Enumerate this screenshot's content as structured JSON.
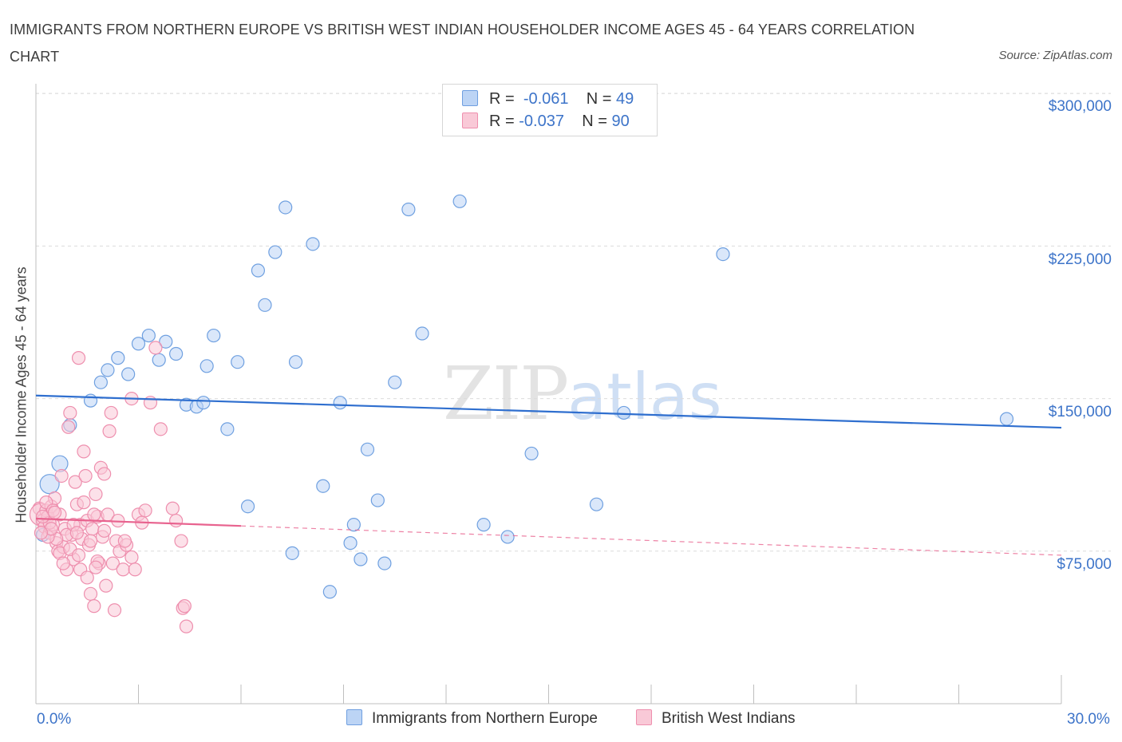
{
  "header": {
    "title": "IMMIGRANTS FROM NORTHERN EUROPE VS BRITISH WEST INDIAN HOUSEHOLDER INCOME AGES 45 - 64 YEARS CORRELATION CHART",
    "source": "Source: ZipAtlas.com"
  },
  "watermark": {
    "zip": "ZIP",
    "atlas": "atlas"
  },
  "legend": {
    "series1": {
      "r_label": "R =",
      "r_value": "-0.061",
      "n_label": "N =",
      "n_value": "49"
    },
    "series2": {
      "r_label": "R =",
      "r_value": "-0.037",
      "n_label": "N =",
      "n_value": "90"
    }
  },
  "colors": {
    "blue": "#6fa0e0",
    "blue_fill": "#bcd4f5",
    "blue_line": "#2f6fcf",
    "pink": "#ee8fae",
    "pink_fill": "#f9c9d7",
    "pink_line": "#e8638f",
    "accent_text": "#3d74c9",
    "grid": "#dcdcdc"
  },
  "chart_data": {
    "type": "scatter",
    "title": "IMMIGRANTS FROM NORTHERN EUROPE VS BRITISH WEST INDIAN HOUSEHOLDER INCOME AGES 45 - 64 YEARS CORRELATION CHART",
    "xlabel": "",
    "ylabel": "Householder Income Ages 45 - 64 years",
    "xlim": [
      0,
      30
    ],
    "ylim": [
      0,
      300000
    ],
    "x_tick_labels": [
      "0.0%",
      "30.0%"
    ],
    "y_ticks": [
      {
        "value": 75000,
        "label": "$75,000"
      },
      {
        "value": 150000,
        "label": "$150,000"
      },
      {
        "value": 225000,
        "label": "$225,000"
      },
      {
        "value": 300000,
        "label": "$300,000"
      }
    ],
    "grid": true,
    "series": [
      {
        "name": "Immigrants from Northern Europe",
        "color": "blue",
        "trend": {
          "x": [
            0,
            30
          ],
          "y": [
            151500,
            135700
          ],
          "dashed_from": null
        },
        "points": [
          [
            0.2,
            83000,
            8
          ],
          [
            0.4,
            108000,
            12
          ],
          [
            0.7,
            118000,
            10
          ],
          [
            1.0,
            137000,
            8
          ],
          [
            1.9,
            158000,
            8
          ],
          [
            2.1,
            164000,
            8
          ],
          [
            2.4,
            170000,
            8
          ],
          [
            2.7,
            162000,
            8
          ],
          [
            3.0,
            177000,
            8
          ],
          [
            3.3,
            181000,
            8
          ],
          [
            3.6,
            169000,
            8
          ],
          [
            3.8,
            178000,
            8
          ],
          [
            4.1,
            172000,
            8
          ],
          [
            4.4,
            147000,
            8
          ],
          [
            4.7,
            146000,
            8
          ],
          [
            5.0,
            166000,
            8
          ],
          [
            5.2,
            181000,
            8
          ],
          [
            5.6,
            135000,
            8
          ],
          [
            5.9,
            168000,
            8
          ],
          [
            6.2,
            97000,
            8
          ],
          [
            6.5,
            213000,
            8
          ],
          [
            6.7,
            196000,
            8
          ],
          [
            7.0,
            222000,
            8
          ],
          [
            7.3,
            244000,
            8
          ],
          [
            7.5,
            74000,
            8
          ],
          [
            7.6,
            168000,
            8
          ],
          [
            8.1,
            226000,
            8
          ],
          [
            8.4,
            107000,
            8
          ],
          [
            8.6,
            55000,
            8
          ],
          [
            8.9,
            148000,
            8
          ],
          [
            9.3,
            88000,
            8
          ],
          [
            9.5,
            71000,
            8
          ],
          [
            9.7,
            125000,
            8
          ],
          [
            10.0,
            100000,
            8
          ],
          [
            10.2,
            69000,
            8
          ],
          [
            10.5,
            158000,
            8
          ],
          [
            10.9,
            243000,
            8
          ],
          [
            11.3,
            182000,
            8
          ],
          [
            12.4,
            247000,
            8
          ],
          [
            13.1,
            88000,
            8
          ],
          [
            13.8,
            82000,
            8
          ],
          [
            14.5,
            123000,
            8
          ],
          [
            16.4,
            98000,
            8
          ],
          [
            20.1,
            221000,
            8
          ],
          [
            28.4,
            140000,
            8
          ],
          [
            1.6,
            149000,
            8
          ],
          [
            9.2,
            79000,
            8
          ],
          [
            4.9,
            148000,
            8
          ],
          [
            17.2,
            143000,
            8
          ]
        ]
      },
      {
        "name": "British West Indians",
        "color": "pink",
        "trend": {
          "x": [
            0,
            30
          ],
          "y": [
            91000,
            73000
          ],
          "solid_until": 6
        },
        "points": [
          [
            0.1,
            96000,
            8
          ],
          [
            0.15,
            93000,
            14
          ],
          [
            0.2,
            90000,
            8
          ],
          [
            0.25,
            87000,
            8
          ],
          [
            0.3,
            95000,
            8
          ],
          [
            0.35,
            92000,
            8
          ],
          [
            0.4,
            84000,
            8
          ],
          [
            0.45,
            97000,
            8
          ],
          [
            0.5,
            88000,
            8
          ],
          [
            0.55,
            101000,
            8
          ],
          [
            0.6,
            79000,
            8
          ],
          [
            0.65,
            75000,
            8
          ],
          [
            0.7,
            93000,
            8
          ],
          [
            0.75,
            112000,
            8
          ],
          [
            0.8,
            77000,
            8
          ],
          [
            0.85,
            86000,
            8
          ],
          [
            0.9,
            66000,
            8
          ],
          [
            0.95,
            136000,
            8
          ],
          [
            1.0,
            143000,
            8
          ],
          [
            1.05,
            83000,
            8
          ],
          [
            1.1,
            71000,
            8
          ],
          [
            1.15,
            109000,
            8
          ],
          [
            1.2,
            98000,
            8
          ],
          [
            1.25,
            170000,
            8
          ],
          [
            1.3,
            88000,
            8
          ],
          [
            1.35,
            81000,
            8
          ],
          [
            1.4,
            124000,
            8
          ],
          [
            1.45,
            112000,
            8
          ],
          [
            1.5,
            90000,
            8
          ],
          [
            1.55,
            78000,
            8
          ],
          [
            1.6,
            54000,
            8
          ],
          [
            1.65,
            86000,
            8
          ],
          [
            1.7,
            48000,
            8
          ],
          [
            1.75,
            103000,
            8
          ],
          [
            1.8,
            92000,
            8
          ],
          [
            1.85,
            69000,
            8
          ],
          [
            1.9,
            116000,
            8
          ],
          [
            1.95,
            82000,
            8
          ],
          [
            2.0,
            113000,
            8
          ],
          [
            2.05,
            58000,
            8
          ],
          [
            2.1,
            93000,
            8
          ],
          [
            2.15,
            134000,
            8
          ],
          [
            2.2,
            143000,
            8
          ],
          [
            2.25,
            69000,
            8
          ],
          [
            2.3,
            46000,
            8
          ],
          [
            2.35,
            80000,
            8
          ],
          [
            2.4,
            90000,
            8
          ],
          [
            2.45,
            75000,
            8
          ],
          [
            2.55,
            66000,
            8
          ],
          [
            2.65,
            78000,
            8
          ],
          [
            2.8,
            72000,
            8
          ],
          [
            3.0,
            93000,
            8
          ],
          [
            3.2,
            95000,
            8
          ],
          [
            3.35,
            148000,
            8
          ],
          [
            3.5,
            175000,
            8
          ],
          [
            3.65,
            135000,
            8
          ],
          [
            4.0,
            96000,
            8
          ],
          [
            4.1,
            90000,
            8
          ],
          [
            4.25,
            80000,
            8
          ],
          [
            4.3,
            47000,
            8
          ],
          [
            4.35,
            48000,
            8
          ],
          [
            4.4,
            38000,
            8
          ],
          [
            0.3,
            99000,
            8
          ],
          [
            0.5,
            95000,
            8
          ],
          [
            0.7,
            74000,
            8
          ],
          [
            0.9,
            83000,
            8
          ],
          [
            1.1,
            88000,
            8
          ],
          [
            1.3,
            66000,
            8
          ],
          [
            1.5,
            62000,
            8
          ],
          [
            1.7,
            93000,
            8
          ],
          [
            0.4,
            89000,
            8
          ],
          [
            0.6,
            81000,
            8
          ],
          [
            0.8,
            69000,
            8
          ],
          [
            1.0,
            76000,
            8
          ],
          [
            1.2,
            84000,
            8
          ],
          [
            1.4,
            99000,
            8
          ],
          [
            1.6,
            80000,
            8
          ],
          [
            1.8,
            70000,
            8
          ],
          [
            2.0,
            85000,
            8
          ],
          [
            0.2,
            92000,
            8
          ],
          [
            2.8,
            150000,
            8
          ],
          [
            3.1,
            89000,
            8
          ],
          [
            2.6,
            80000,
            8
          ],
          [
            0.35,
            82000,
            8
          ],
          [
            0.55,
            94000,
            8
          ],
          [
            1.25,
            73000,
            8
          ],
          [
            1.75,
            67000,
            8
          ],
          [
            0.45,
            86000,
            8
          ],
          [
            2.9,
            66000,
            8
          ],
          [
            0.15,
            84000,
            8
          ]
        ]
      }
    ]
  },
  "bottom_legend": {
    "series1_label": "Immigrants from Northern Europe",
    "series2_label": "British West Indians"
  }
}
